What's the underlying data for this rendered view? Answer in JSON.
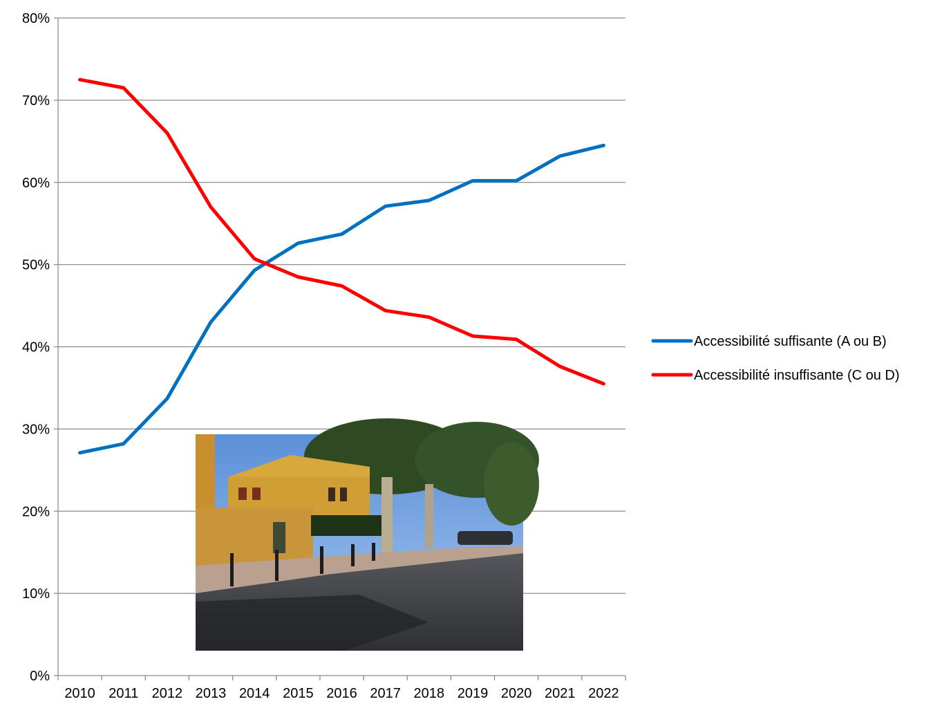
{
  "chart_data": {
    "type": "line",
    "x": [
      "2010",
      "2011",
      "2012",
      "2013",
      "2014",
      "2015",
      "2016",
      "2017",
      "2018",
      "2019",
      "2020",
      "2021",
      "2022"
    ],
    "series": [
      {
        "name": "Accessibilité suffisante (A ou B)",
        "color": "#0070C0",
        "values": [
          27.1,
          28.2,
          33.7,
          43.0,
          49.3,
          52.6,
          53.7,
          57.1,
          57.8,
          60.2,
          60.2,
          63.2,
          64.5
        ]
      },
      {
        "name": "Accessibilité insuffisante (C ou D)",
        "color": "#FF0000",
        "values": [
          72.5,
          71.5,
          66.0,
          57.0,
          50.7,
          48.5,
          47.4,
          44.4,
          43.6,
          41.3,
          40.9,
          37.6,
          35.5
        ]
      }
    ],
    "y_ticks": [
      "0%",
      "10%",
      "20%",
      "30%",
      "40%",
      "50%",
      "60%",
      "70%",
      "80%"
    ],
    "ylim": [
      0,
      80
    ],
    "grid": "horizontal",
    "legend_position": "right",
    "inset_image": "photo of a yellow building by a tree-lined street"
  }
}
